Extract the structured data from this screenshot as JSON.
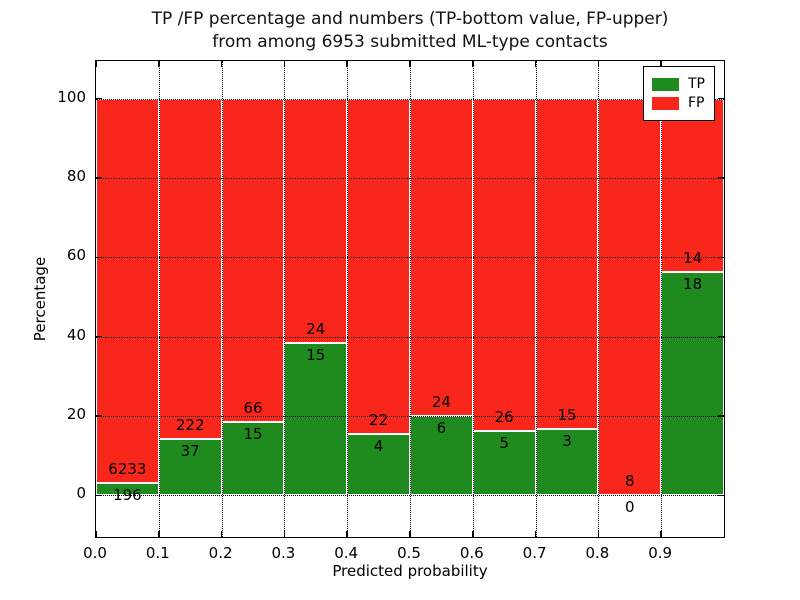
{
  "figure": {
    "title_line1": "TP /FP percentage and numbers (TP-bottom value, FP-upper)",
    "title_line2": "from among 6953 submitted ML-type contacts",
    "background": "#ffffff"
  },
  "chart_data": {
    "type": "bar",
    "stacked": true,
    "title": "TP /FP percentage and numbers (TP-bottom value, FP-upper) from among 6953 submitted ML-type contacts",
    "xlabel": "Predicted probability",
    "ylabel": "Percentage",
    "total_contacts": 6953,
    "bin_edges": [
      0.0,
      0.1,
      0.2,
      0.3,
      0.4,
      0.5,
      0.6,
      0.7,
      0.8,
      0.9,
      1.0
    ],
    "x_ticks": [
      "0.0",
      "0.1",
      "0.2",
      "0.3",
      "0.4",
      "0.5",
      "0.6",
      "0.7",
      "0.8",
      "0.9"
    ],
    "y_ticks": [
      "0",
      "20",
      "40",
      "60",
      "80",
      "100"
    ],
    "y_tick_values": [
      0,
      20,
      40,
      60,
      80,
      100
    ],
    "xlim": [
      0.0,
      1.0
    ],
    "ylim": [
      -10.5,
      109.5
    ],
    "grid": {
      "visible": true,
      "style": "dotted",
      "color": "#000000"
    },
    "series": [
      {
        "name": "TP",
        "color": "#1f8b1f",
        "counts": [
          196,
          37,
          15,
          15,
          4,
          6,
          5,
          3,
          0,
          18
        ],
        "percentages": [
          3.05,
          14.29,
          18.52,
          38.46,
          15.38,
          20.0,
          16.13,
          16.67,
          0.0,
          56.25
        ]
      },
      {
        "name": "FP",
        "color": "#f8261b",
        "counts": [
          6233,
          222,
          66,
          24,
          22,
          24,
          26,
          15,
          8,
          14
        ],
        "percentages": [
          96.95,
          85.71,
          81.48,
          61.54,
          84.62,
          80.0,
          83.87,
          83.33,
          100.0,
          43.75
        ]
      }
    ],
    "legend": {
      "position": "upper right",
      "entries": [
        "TP",
        "FP"
      ]
    }
  }
}
